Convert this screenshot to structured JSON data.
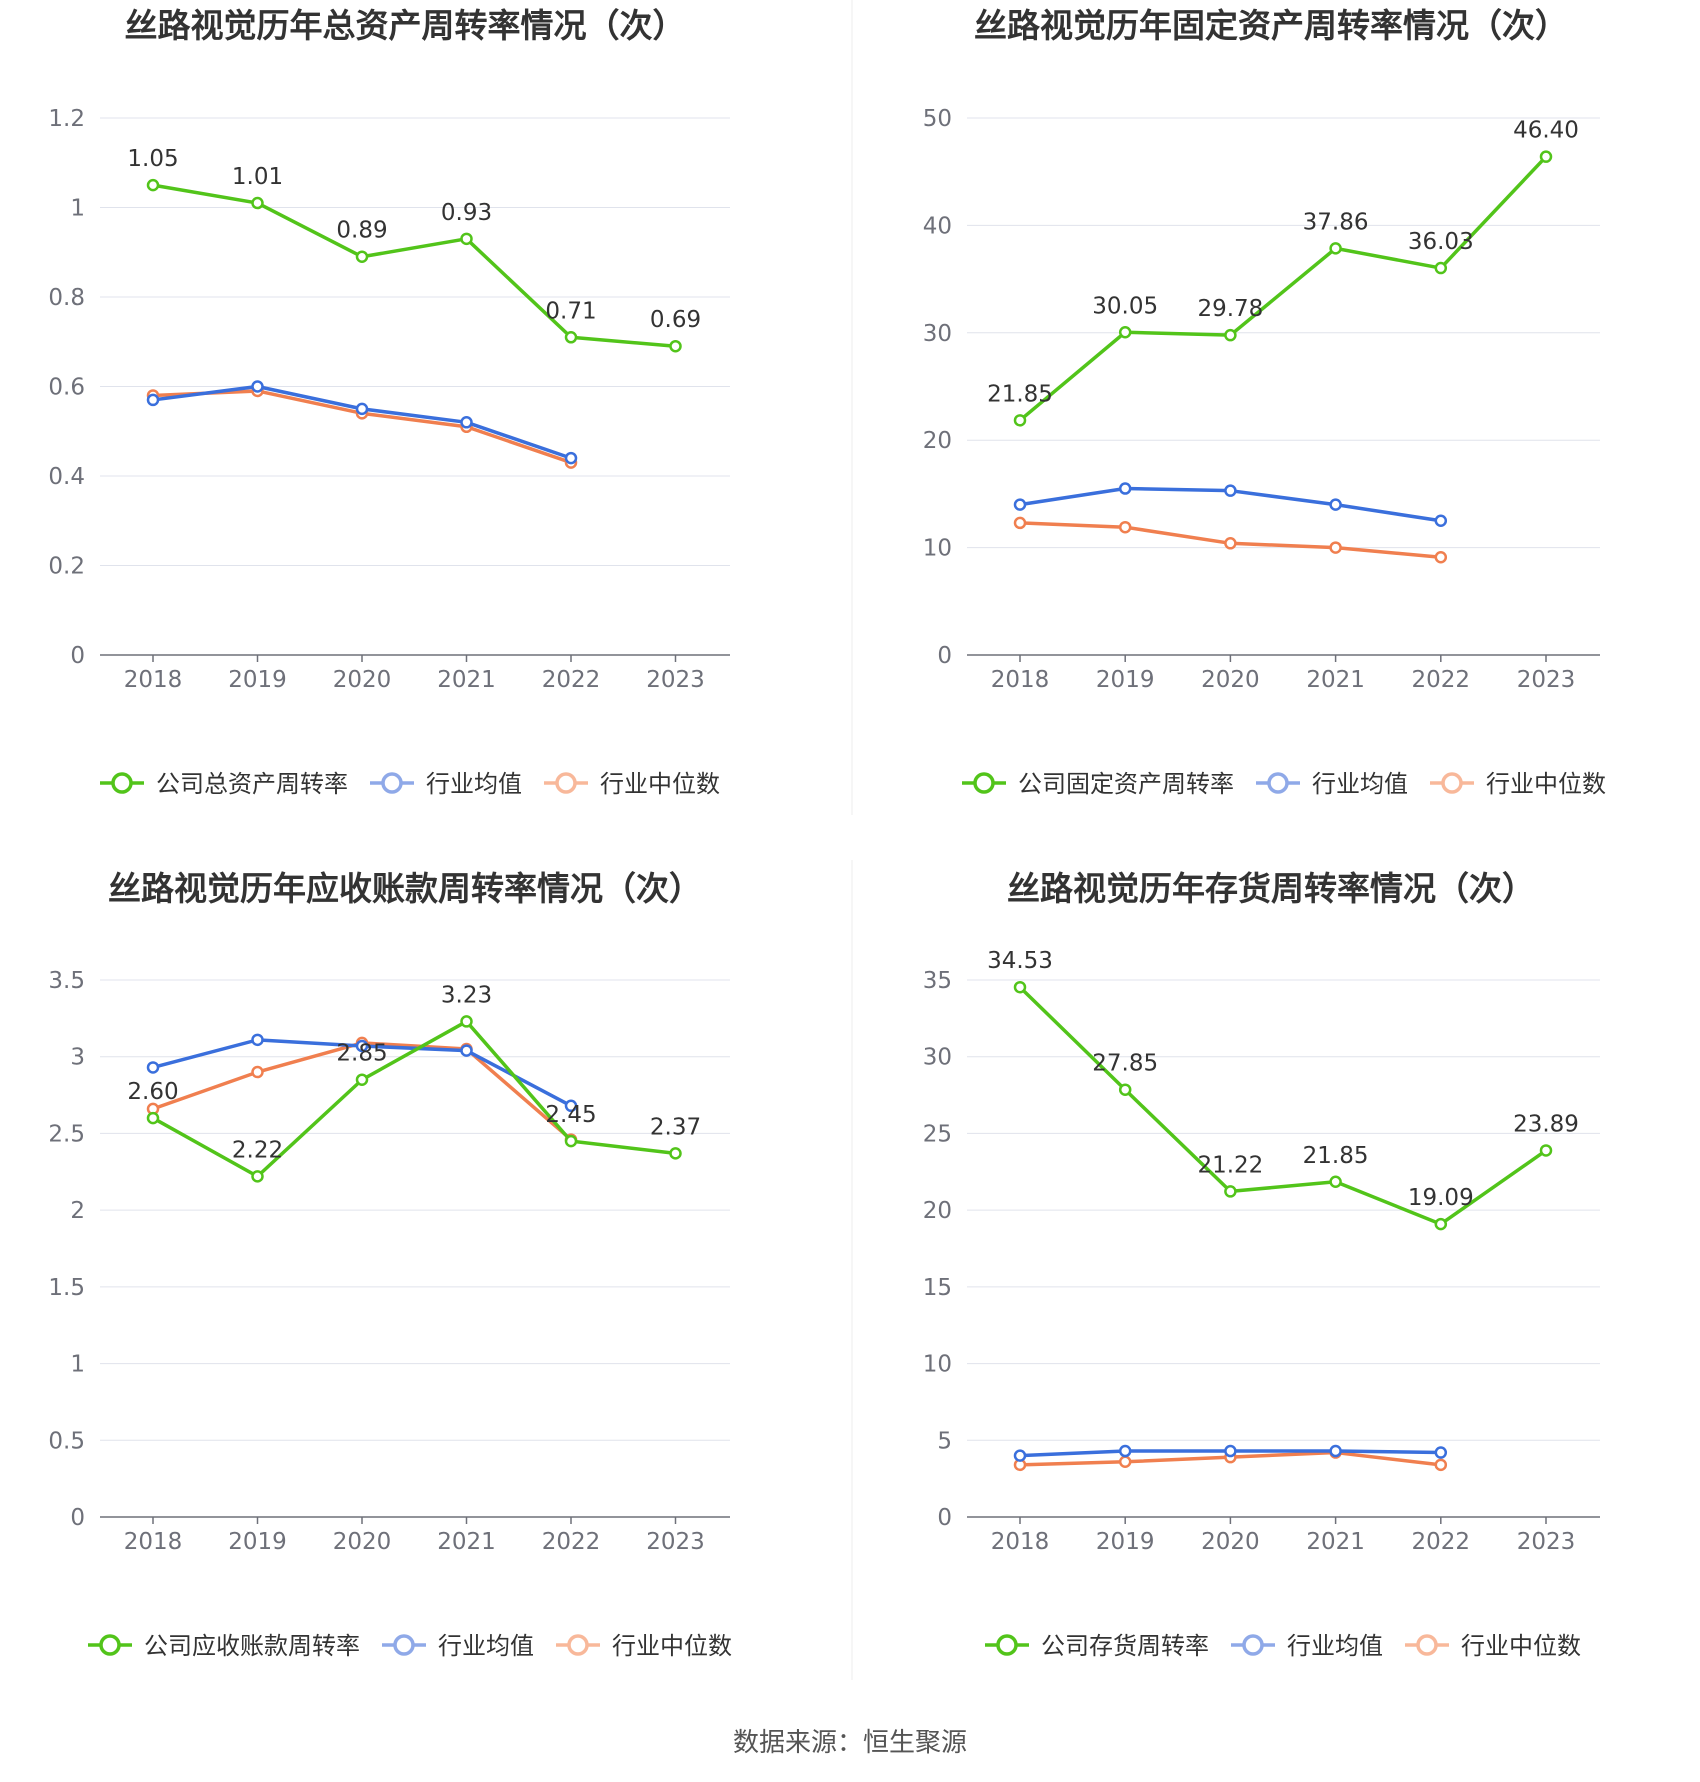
{
  "source": "数据来源：恒生聚源",
  "colors": {
    "company": "#52c41a",
    "avg": "#3a6fdc",
    "median": "#f07f4f",
    "avg_legend": "#8fa9e8",
    "median_legend": "#f8b89a",
    "grid": "#e0e3ec",
    "axis": "#6e7079",
    "divider": "#eeeeee"
  },
  "chart_data": [
    {
      "type": "line",
      "title": "丝路视觉历年总资产周转率情况（次）",
      "categories": [
        "2018",
        "2019",
        "2020",
        "2021",
        "2022",
        "2023"
      ],
      "ylim": [
        0,
        1.2
      ],
      "yticks": [
        "0",
        "0.2",
        "0.4",
        "0.6",
        "0.8",
        "1",
        "1.2"
      ],
      "legend_position": "bottom",
      "series": [
        {
          "name": "公司总资产周转率",
          "key": "company",
          "values": [
            1.05,
            1.01,
            0.89,
            0.93,
            0.71,
            0.69
          ],
          "labels": [
            "1.05",
            "1.01",
            "0.89",
            "0.93",
            "0.71",
            "0.69"
          ]
        },
        {
          "name": "行业均值",
          "key": "avg",
          "values": [
            0.57,
            0.6,
            0.55,
            0.52,
            0.44,
            null
          ]
        },
        {
          "name": "行业中位数",
          "key": "median",
          "values": [
            0.58,
            0.59,
            0.54,
            0.51,
            0.43,
            null
          ]
        }
      ]
    },
    {
      "type": "line",
      "title": "丝路视觉历年固定资产周转率情况（次）",
      "categories": [
        "2018",
        "2019",
        "2020",
        "2021",
        "2022",
        "2023"
      ],
      "ylim": [
        0,
        50
      ],
      "yticks": [
        "0",
        "10",
        "20",
        "30",
        "40",
        "50"
      ],
      "legend_position": "bottom",
      "series": [
        {
          "name": "公司固定资产周转率",
          "key": "company",
          "values": [
            21.85,
            30.05,
            29.78,
            37.86,
            36.03,
            46.4
          ],
          "labels": [
            "21.85",
            "30.05",
            "29.78",
            "37.86",
            "36.03",
            "46.40"
          ]
        },
        {
          "name": "行业均值",
          "key": "avg",
          "values": [
            14.0,
            15.5,
            15.3,
            14.0,
            12.5,
            null
          ]
        },
        {
          "name": "行业中位数",
          "key": "median",
          "values": [
            12.3,
            11.9,
            10.4,
            10.0,
            9.1,
            null
          ]
        }
      ]
    },
    {
      "type": "line",
      "title": "丝路视觉历年应收账款周转率情况（次）",
      "categories": [
        "2018",
        "2019",
        "2020",
        "2021",
        "2022",
        "2023"
      ],
      "ylim": [
        0,
        3.5
      ],
      "yticks": [
        "0",
        "0.5",
        "1",
        "1.5",
        "2",
        "2.5",
        "3",
        "3.5"
      ],
      "legend_position": "bottom",
      "series": [
        {
          "name": "公司应收账款周转率",
          "key": "company",
          "values": [
            2.6,
            2.22,
            2.85,
            3.23,
            2.45,
            2.37
          ],
          "labels": [
            "2.60",
            "2.22",
            "2.85",
            "3.23",
            "2.45",
            "2.37"
          ]
        },
        {
          "name": "行业均值",
          "key": "avg",
          "values": [
            2.93,
            3.11,
            3.07,
            3.04,
            2.68,
            null
          ]
        },
        {
          "name": "行业中位数",
          "key": "median",
          "values": [
            2.66,
            2.9,
            3.09,
            3.05,
            2.46,
            null
          ]
        }
      ]
    },
    {
      "type": "line",
      "title": "丝路视觉历年存货周转率情况（次）",
      "categories": [
        "2018",
        "2019",
        "2020",
        "2021",
        "2022",
        "2023"
      ],
      "ylim": [
        0,
        35
      ],
      "yticks": [
        "0",
        "5",
        "10",
        "15",
        "20",
        "25",
        "30",
        "35"
      ],
      "legend_position": "bottom",
      "series": [
        {
          "name": "公司存货周转率",
          "key": "company",
          "values": [
            34.53,
            27.85,
            21.22,
            21.85,
            19.09,
            23.89
          ],
          "labels": [
            "34.53",
            "27.85",
            "21.22",
            "21.85",
            "19.09",
            "23.89"
          ]
        },
        {
          "name": "行业均值",
          "key": "avg",
          "values": [
            4.0,
            4.3,
            4.3,
            4.3,
            4.2,
            null
          ]
        },
        {
          "name": "行业中位数",
          "key": "median",
          "values": [
            3.4,
            3.6,
            3.9,
            4.2,
            3.4,
            null
          ]
        }
      ]
    }
  ]
}
